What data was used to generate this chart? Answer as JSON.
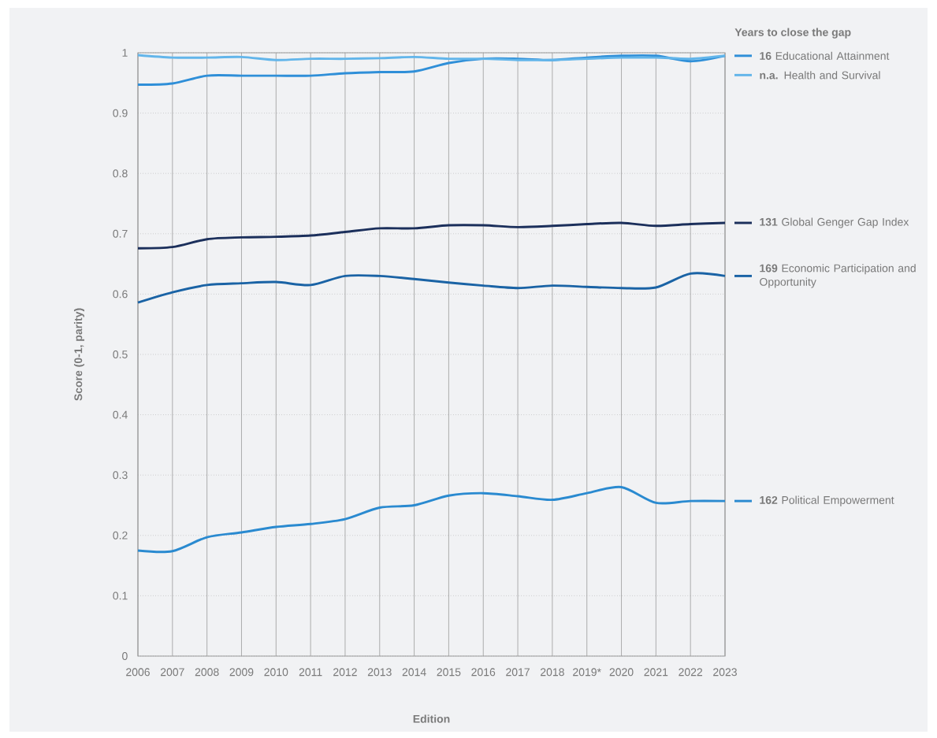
{
  "chart_data": {
    "type": "line",
    "xlabel": "Edition",
    "ylabel": "Score (0-1, parity)",
    "legend_title": "Years to close the gap",
    "categories": [
      "2006",
      "2007",
      "2008",
      "2009",
      "2010",
      "2011",
      "2012",
      "2013",
      "2014",
      "2015",
      "2016",
      "2017",
      "2018",
      "2019*",
      "2020",
      "2021",
      "2022",
      "2023"
    ],
    "ylim": [
      0,
      1
    ],
    "yticks": [
      0,
      0.1,
      0.2,
      0.3,
      0.4,
      0.5,
      0.6,
      0.7,
      0.8,
      0.9,
      1
    ],
    "grid": true,
    "legend": "right",
    "series": [
      {
        "name": "**16** Educational Attainment",
        "color": "#2f8fd8",
        "values": [
          0.947,
          0.949,
          0.962,
          0.962,
          0.962,
          0.962,
          0.966,
          0.968,
          0.969,
          0.983,
          0.99,
          0.99,
          0.988,
          0.992,
          0.995,
          0.995,
          0.986,
          0.995
        ]
      },
      {
        "name": "**n.a.** Health and Survival",
        "color": "#62b5ea",
        "values": [
          0.996,
          0.992,
          0.992,
          0.993,
          0.988,
          0.99,
          0.99,
          0.991,
          0.993,
          0.99,
          0.99,
          0.988,
          0.988,
          0.99,
          0.992,
          0.992,
          0.99,
          0.995
        ]
      },
      {
        "name": "**131** Global Genger Gap Index",
        "color": "#1b2f5b",
        "values": [
          0.676,
          0.678,
          0.691,
          0.694,
          0.695,
          0.697,
          0.703,
          0.709,
          0.709,
          0.714,
          0.714,
          0.711,
          0.713,
          0.716,
          0.718,
          0.713,
          0.716,
          0.718
        ]
      },
      {
        "name": "**169** Economic Participation and Opportunity",
        "color": "#1a63a5",
        "values": [
          0.586,
          0.603,
          0.615,
          0.618,
          0.62,
          0.615,
          0.63,
          0.63,
          0.625,
          0.619,
          0.614,
          0.61,
          0.614,
          0.612,
          0.61,
          0.611,
          0.634,
          0.63
        ]
      },
      {
        "name": "**162** Political Empowerment",
        "color": "#2a8ad0",
        "values": [
          0.175,
          0.174,
          0.197,
          0.205,
          0.214,
          0.219,
          0.227,
          0.246,
          0.25,
          0.266,
          0.27,
          0.265,
          0.259,
          0.27,
          0.28,
          0.254,
          0.257,
          0.257
        ]
      }
    ]
  }
}
